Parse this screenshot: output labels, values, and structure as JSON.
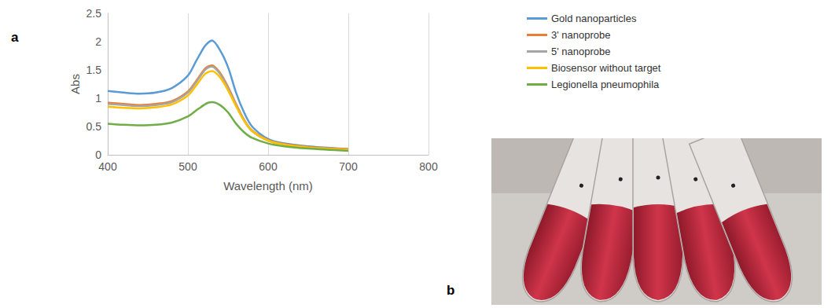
{
  "chart_data": {
    "type": "line",
    "x_label": "Wavelength (nm)",
    "y_label": "Abs",
    "x": [
      400,
      420,
      440,
      460,
      480,
      500,
      510,
      520,
      525,
      530,
      540,
      550,
      560,
      570,
      580,
      600,
      620,
      650,
      700
    ],
    "series": [
      {
        "name": "Gold nanoparticles",
        "color": "#5b9bd5",
        "values": [
          1.13,
          1.1,
          1.08,
          1.1,
          1.18,
          1.4,
          1.65,
          1.9,
          1.98,
          2.02,
          1.85,
          1.55,
          1.1,
          0.75,
          0.5,
          0.28,
          0.2,
          0.15,
          0.1
        ]
      },
      {
        "name": "3' nanoprobe",
        "color": "#ed7d31",
        "values": [
          0.92,
          0.9,
          0.88,
          0.9,
          0.95,
          1.12,
          1.3,
          1.5,
          1.56,
          1.58,
          1.45,
          1.2,
          0.9,
          0.62,
          0.43,
          0.26,
          0.19,
          0.14,
          0.1
        ]
      },
      {
        "name": "5' nanoprobe",
        "color": "#a5a5a5",
        "values": [
          0.9,
          0.88,
          0.86,
          0.88,
          0.93,
          1.1,
          1.28,
          1.48,
          1.54,
          1.56,
          1.43,
          1.18,
          0.88,
          0.61,
          0.42,
          0.25,
          0.18,
          0.13,
          0.09
        ]
      },
      {
        "name": "Biosensor without target",
        "color": "#ffc000",
        "values": [
          0.85,
          0.83,
          0.82,
          0.84,
          0.89,
          1.05,
          1.22,
          1.41,
          1.46,
          1.48,
          1.37,
          1.14,
          0.86,
          0.6,
          0.42,
          0.25,
          0.18,
          0.13,
          0.09
        ]
      },
      {
        "name": "Legionella pneumophila",
        "color": "#70ad47",
        "values": [
          0.55,
          0.53,
          0.52,
          0.53,
          0.57,
          0.68,
          0.78,
          0.88,
          0.92,
          0.93,
          0.88,
          0.75,
          0.55,
          0.4,
          0.3,
          0.2,
          0.15,
          0.11,
          0.07
        ]
      }
    ],
    "xlim": [
      400,
      800
    ],
    "xticks": [
      400,
      500,
      600,
      700,
      800
    ],
    "ylim": [
      0,
      2.5
    ],
    "yticks": [
      0,
      0.5,
      1,
      1.5,
      2,
      2.5
    ],
    "grid": true,
    "legend": "right"
  },
  "panel_labels": [
    "a",
    "b"
  ]
}
